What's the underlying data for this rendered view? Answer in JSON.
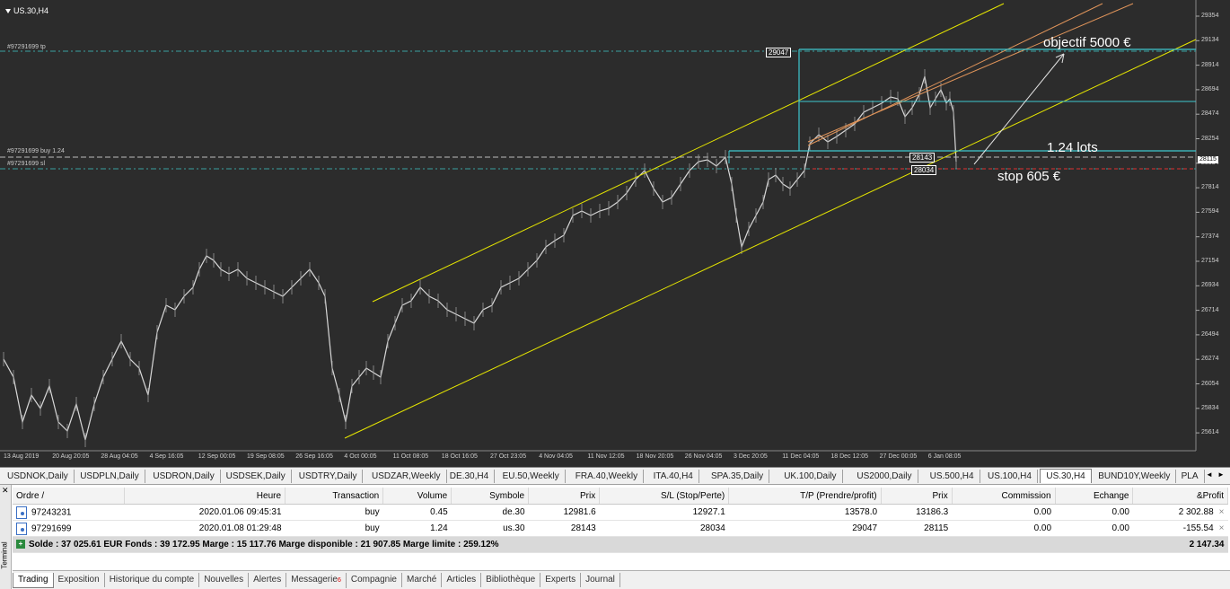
{
  "chart": {
    "symbol": "US.30,H4",
    "price_ticks": [
      "29354",
      "29134",
      "28914",
      "28694",
      "28474",
      "28254",
      "28034",
      "27814",
      "27594",
      "27374",
      "27154",
      "26934",
      "26714",
      "26494",
      "26274",
      "26054",
      "25834",
      "25614"
    ],
    "time_ticks": [
      "13 Aug 2019",
      "20 Aug 20:05",
      "28 Aug 04:05",
      "4 Sep 16:05",
      "12 Sep 00:05",
      "19 Sep 08:05",
      "26 Sep 16:05",
      "4 Oct 00:05",
      "11 Oct 08:05",
      "18 Oct 16:05",
      "27 Oct 23:05",
      "4 Nov 04:05",
      "11 Nov 12:05",
      "18 Nov 20:05",
      "26 Nov 04:05",
      "3 Dec 20:05",
      "11 Dec 04:05",
      "18 Dec 12:05",
      "27 Dec 00:05",
      "6 Jan 08:05"
    ],
    "order_lines": {
      "tp": "#97291699 tp",
      "buy": "#97291699 buy 1.24",
      "sl": "#97291699 sl"
    },
    "box_labels": {
      "tp": "29047",
      "entry": "28143",
      "sl": "28034"
    },
    "current_price": "28115",
    "annotations": {
      "target": "objectif 5000 €",
      "lots": "1.24 lots",
      "stop": "stop 605 €"
    },
    "colors": {
      "background": "#2c2c2c",
      "channel": "#e6e600",
      "inner_channel": "#e0945a",
      "box": "#3ec8d0",
      "stop_line": "#e03030"
    }
  },
  "symbol_tabs": [
    "USDNOK,Daily",
    "USDPLN,Daily",
    "USDRON,Daily",
    "USDSEK,Daily",
    "USDTRY,Daily",
    "USDZAR,Weekly",
    "DE.30,H4",
    "EU.50,Weekly",
    "FRA.40,Weekly",
    "ITA.40,H4",
    "SPA.35,Daily",
    "UK.100,Daily",
    "US2000,Daily",
    "US.500,H4",
    "US.100,H4",
    "US.30,H4",
    "BUND10Y,Weekly",
    "PLA"
  ],
  "active_tab": "US.30,H4",
  "terminal": {
    "side_label": "Terminal",
    "columns": [
      "Ordre",
      "Heure",
      "Transaction",
      "Volume",
      "Symbole",
      "Prix",
      "S/L (Stop/Perte)",
      "T/P (Prendre/profit)",
      "Prix",
      "Commission",
      "Echange",
      "&Profit"
    ],
    "rows": [
      {
        "order": "97243231",
        "time": "2020.01.06 09:45:31",
        "type": "buy",
        "volume": "0.45",
        "symbol": "de.30",
        "price": "12981.6",
        "sl": "12927.1",
        "tp": "13578.0",
        "cur": "13186.3",
        "commission": "0.00",
        "swap": "0.00",
        "profit": "2 302.88"
      },
      {
        "order": "97291699",
        "time": "2020.01.08 01:29:48",
        "type": "buy",
        "volume": "1.24",
        "symbol": "us.30",
        "price": "28143",
        "sl": "28034",
        "tp": "29047",
        "cur": "28115",
        "commission": "0.00",
        "swap": "0.00",
        "profit": "-155.54"
      }
    ],
    "summary": "Solde : 37 025.61 EUR  Fonds : 39 172.95  Marge : 15 117.76  Marge disponible : 21 907.85  Marge limite : 259.12%",
    "summary_profit": "2 147.34",
    "bottom_tabs": [
      "Trading",
      "Exposition",
      "Historique du compte",
      "Nouvelles",
      "Alertes",
      "Messagerie",
      "Compagnie",
      "Marché",
      "Articles",
      "Bibliothèque",
      "Experts",
      "Journal"
    ],
    "messagerie_badge": "6"
  }
}
